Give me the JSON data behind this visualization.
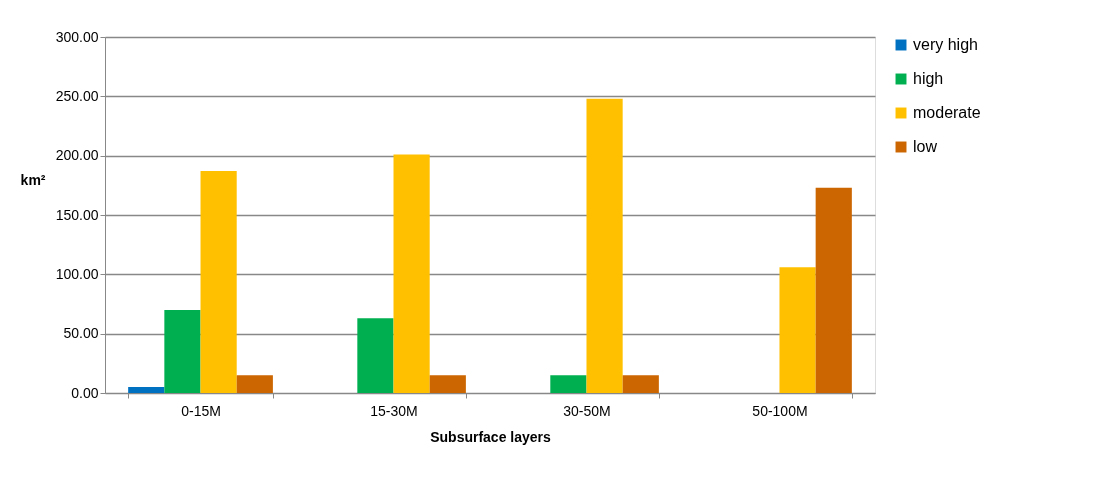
{
  "chart_data": {
    "type": "bar",
    "xlabel": "Subsurface layers",
    "ylabel": "km²",
    "categories": [
      "0-15M",
      "15-30M",
      "30-50M",
      "50-100M"
    ],
    "series": [
      {
        "name": "very high",
        "color": "#0070c0",
        "values": [
          5,
          null,
          null,
          null
        ]
      },
      {
        "name": "high",
        "color": "#00b050",
        "values": [
          70,
          63,
          15,
          null
        ]
      },
      {
        "name": "moderate",
        "color": "#ffc000",
        "values": [
          187,
          201,
          248,
          106
        ]
      },
      {
        "name": "low",
        "color": "#cc6600",
        "values": [
          15,
          15,
          15,
          173
        ]
      }
    ],
    "ylim": [
      0,
      300
    ],
    "yticks": [
      {
        "value": 0,
        "label": "0.00"
      },
      {
        "value": 50,
        "label": "50.00"
      },
      {
        "value": 100,
        "label": "100.00"
      },
      {
        "value": 150,
        "label": "150.00"
      },
      {
        "value": 200,
        "label": "200.00"
      },
      {
        "value": 250,
        "label": "250.00"
      },
      {
        "value": 300,
        "label": "300.00"
      }
    ],
    "grid": "y",
    "legend": "right"
  }
}
